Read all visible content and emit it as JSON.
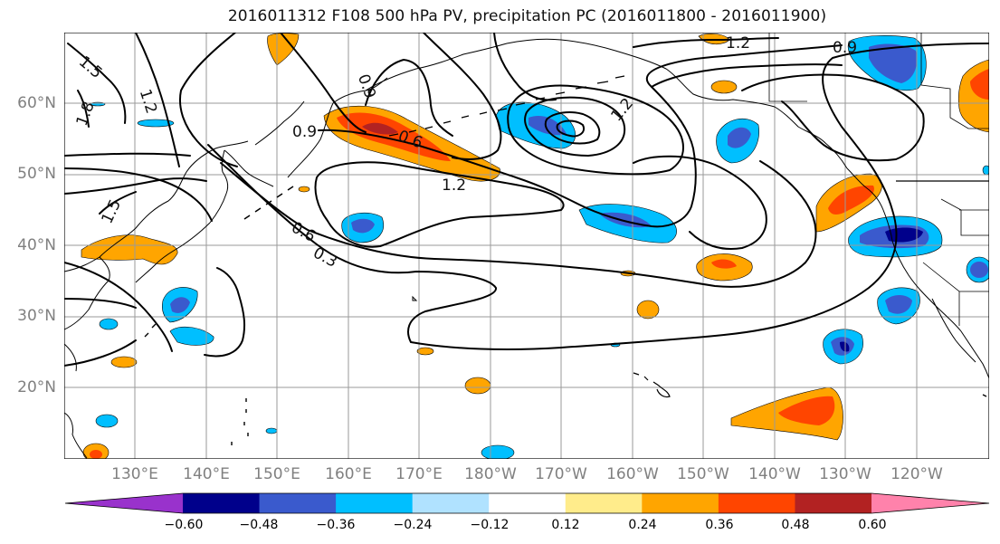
{
  "title": "2016011312 F108 500 hPa PV, precipitation PC (2016011800 - 2016011900)",
  "map": {
    "lat_ticks": [
      "60°N",
      "50°N",
      "40°N",
      "30°N",
      "20°N"
    ],
    "lon_ticks": [
      "130°E",
      "140°E",
      "150°E",
      "160°E",
      "170°E",
      "180°W",
      "170°W",
      "160°W",
      "150°W",
      "140°W",
      "130°W",
      "120°W"
    ],
    "contour_labels": [
      "1.5",
      "1.2",
      "1.8",
      "0.9",
      "0.6",
      "1.2",
      "1.5",
      "0.6",
      "0.3",
      "1.2",
      "0.9",
      "1.2",
      "0.9"
    ]
  },
  "colorbar": {
    "tick_labels": [
      "−0.60",
      "−0.48",
      "−0.36",
      "−0.24",
      "−0.12",
      "0.12",
      "0.24",
      "0.36",
      "0.48",
      "0.60"
    ],
    "colors": [
      "#9932cc",
      "#00008b",
      "#3a5acd",
      "#00bfff",
      "#b0e2ff",
      "#ffffff",
      "#ffec8b",
      "#ffa500",
      "#ff4500",
      "#b22222",
      "#ff82ab"
    ]
  },
  "colors": {
    "neg_strong": "#00008b",
    "neg_mid": "#3a5acd",
    "neg_light": "#00bfff",
    "neg_pale": "#b0e2ff",
    "pos_pale": "#ffec8b",
    "pos_light": "#ffa500",
    "pos_mid": "#ff4500",
    "pos_strong": "#b22222"
  }
}
